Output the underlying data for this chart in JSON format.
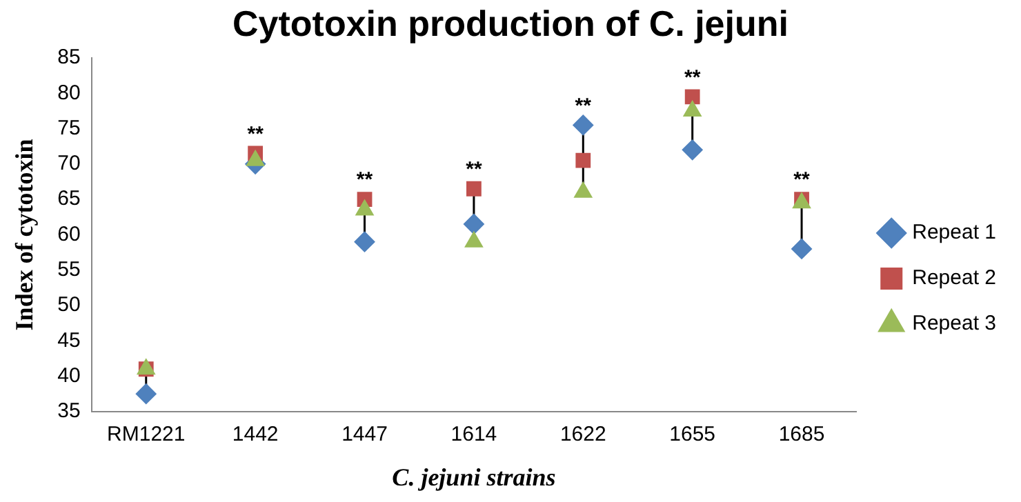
{
  "chart_data": {
    "type": "scatter",
    "title": "Cytotoxin production of C. jejuni",
    "xlabel": "C. jejuni strains",
    "ylabel": "Index of cytotoxin",
    "categories": [
      "RM1221",
      "1442",
      "1447",
      "1614",
      "1622",
      "1655",
      "1685"
    ],
    "series": [
      {
        "name": "Repeat 1",
        "color": "#4f81bd",
        "marker": "diamond",
        "values": [
          37.5,
          70,
          59,
          61.5,
          75.5,
          72,
          58
        ]
      },
      {
        "name": "Repeat 2",
        "color": "#c0504d",
        "marker": "square",
        "values": [
          41,
          71.5,
          65,
          66.5,
          70.5,
          79.5,
          65
        ]
      },
      {
        "name": "Repeat 3",
        "color": "#9bbb59",
        "marker": "triangle",
        "values": [
          41,
          70.5,
          63.5,
          59,
          66,
          77.5,
          64.5
        ]
      }
    ],
    "ylim": [
      35,
      85
    ],
    "yticks": [
      35,
      40,
      45,
      50,
      55,
      60,
      65,
      70,
      75,
      80,
      85
    ],
    "grid": false,
    "legend": "right",
    "annotations": [
      {
        "text": "**",
        "x": "1442",
        "y": 71.5
      },
      {
        "text": "**",
        "x": "1447",
        "y": 65
      },
      {
        "text": "**",
        "x": "1614",
        "y": 66.5
      },
      {
        "text": "**",
        "x": "1622",
        "y": 75.5
      },
      {
        "text": "**",
        "x": "1655",
        "y": 79.5
      },
      {
        "text": "**",
        "x": "1685",
        "y": 65
      }
    ]
  }
}
